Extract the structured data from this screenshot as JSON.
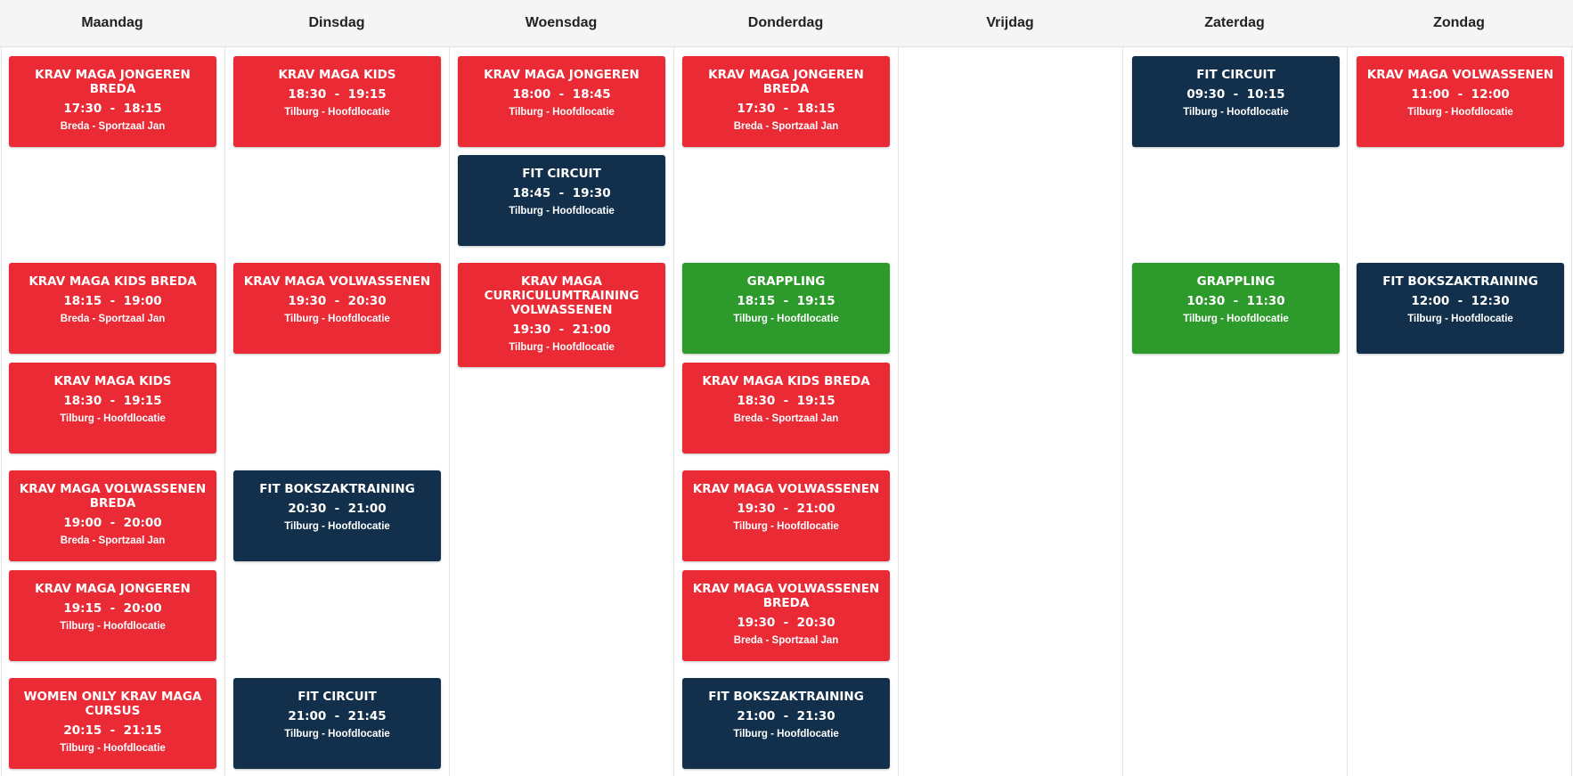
{
  "days": [
    "Maandag",
    "Dinsdag",
    "Woensdag",
    "Donderdag",
    "Vrijdag",
    "Zaterdag",
    "Zondag"
  ],
  "colors": {
    "red": "#ea2a35",
    "navy": "#12304b",
    "green": "#2d9a2c",
    "header_bg": "#f5f5f5"
  },
  "events": [
    {
      "title": "KRAV MAGA JONGEREN BREDA",
      "time": "17:30  -  18:15",
      "location": "Breda - Sportzaal Jan",
      "color": "red"
    },
    {
      "title": "KRAV MAGA KIDS BREDA",
      "time": "18:15  -  19:00",
      "location": "Breda - Sportzaal Jan",
      "color": "red"
    },
    {
      "title": "KRAV MAGA KIDS",
      "time": "18:30  -  19:15",
      "location": "Tilburg - Hoofdlocatie",
      "color": "red"
    },
    {
      "title": "KRAV MAGA VOLWASSENEN BREDA",
      "time": "19:00  -  20:00",
      "location": "Breda - Sportzaal Jan",
      "color": "red"
    },
    {
      "title": "KRAV MAGA JONGEREN",
      "time": "19:15  -  20:00",
      "location": "Tilburg - Hoofdlocatie",
      "color": "red"
    },
    {
      "title": "WOMEN ONLY KRAV MAGA CURSUS",
      "time": "20:15  -  21:15",
      "location": "Tilburg - Hoofdlocatie",
      "color": "red"
    },
    {
      "title": "KRAV MAGA KIDS",
      "time": "18:30  -  19:15",
      "location": "Tilburg - Hoofdlocatie",
      "color": "red"
    },
    {
      "title": "KRAV MAGA VOLWASSENEN",
      "time": "19:30  -  20:30",
      "location": "Tilburg - Hoofdlocatie",
      "color": "red"
    },
    {
      "title": "FIT BOKSZAKTRAINING",
      "time": "20:30  -  21:00",
      "location": "Tilburg - Hoofdlocatie",
      "color": "navy"
    },
    {
      "title": "FIT CIRCUIT",
      "time": "21:00  -  21:45",
      "location": "Tilburg - Hoofdlocatie",
      "color": "navy"
    },
    {
      "title": "KRAV MAGA JONGEREN",
      "time": "18:00  -  18:45",
      "location": "Tilburg - Hoofdlocatie",
      "color": "red"
    },
    {
      "title": "FIT CIRCUIT",
      "time": "18:45  -  19:30",
      "location": "Tilburg - Hoofdlocatie",
      "color": "navy"
    },
    {
      "title": "KRAV MAGA CURRICULUMTRAINING VOLWASSENEN",
      "time": "19:30  -  21:00",
      "location": "Tilburg - Hoofdlocatie",
      "color": "red"
    },
    {
      "title": "KRAV MAGA JONGEREN BREDA",
      "time": "17:30  -  18:15",
      "location": "Breda - Sportzaal Jan",
      "color": "red"
    },
    {
      "title": "GRAPPLING",
      "time": "18:15  -  19:15",
      "location": "Tilburg - Hoofdlocatie",
      "color": "green"
    },
    {
      "title": "KRAV MAGA KIDS BREDA",
      "time": "18:30  -  19:15",
      "location": "Breda - Sportzaal Jan",
      "color": "red"
    },
    {
      "title": "KRAV MAGA VOLWASSENEN",
      "time": "19:30  -  21:00",
      "location": "Tilburg - Hoofdlocatie",
      "color": "red"
    },
    {
      "title": "KRAV MAGA VOLWASSENEN BREDA",
      "time": "19:30  -  20:30",
      "location": "Breda - Sportzaal Jan",
      "color": "red"
    },
    {
      "title": "FIT BOKSZAKTRAINING",
      "time": "21:00  -  21:30",
      "location": "Tilburg - Hoofdlocatie",
      "color": "navy"
    },
    {
      "title": "FIT CIRCUIT",
      "time": "09:30  -  10:15",
      "location": "Tilburg - Hoofdlocatie",
      "color": "navy"
    },
    {
      "title": "GRAPPLING",
      "time": "10:30  -  11:30",
      "location": "Tilburg - Hoofdlocatie",
      "color": "green"
    },
    {
      "title": "KRAV MAGA VOLWASSENEN",
      "time": "11:00  -  12:00",
      "location": "Tilburg - Hoofdlocatie",
      "color": "red"
    },
    {
      "title": "FIT BOKSZAKTRAINING",
      "time": "12:00  -  12:30",
      "location": "Tilburg - Hoofdlocatie",
      "color": "navy"
    }
  ]
}
